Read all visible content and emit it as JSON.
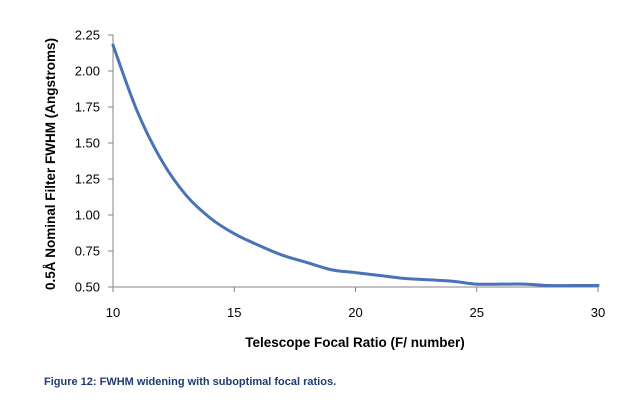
{
  "chart_data": {
    "type": "line",
    "title": "",
    "xlabel": "Telescope Focal Ratio (F/ number)",
    "ylabel": "0.5Å Nominal Filter FWHM (Angstroms)",
    "xlim": [
      10,
      30
    ],
    "ylim": [
      0.5,
      2.25
    ],
    "x_ticks": [
      10,
      15,
      20,
      25,
      30
    ],
    "y_ticks": [
      "0.50",
      "0.75",
      "1.00",
      "1.25",
      "1.50",
      "1.75",
      "2.00",
      "2.25"
    ],
    "grid": false,
    "legend": "none",
    "series": [
      {
        "color": "#4a72b8",
        "x": [
          10,
          11,
          12,
          13,
          14,
          15,
          16,
          17,
          18,
          19,
          20,
          21,
          22,
          23,
          24,
          25,
          26,
          27,
          28,
          29,
          30
        ],
        "y": [
          2.18,
          1.72,
          1.38,
          1.14,
          0.98,
          0.87,
          0.79,
          0.72,
          0.67,
          0.62,
          0.6,
          0.58,
          0.56,
          0.55,
          0.54,
          0.52,
          0.52,
          0.52,
          0.51,
          0.51,
          0.51
        ]
      }
    ]
  },
  "caption": "Figure 12: FWHM widening with suboptimal focal ratios."
}
